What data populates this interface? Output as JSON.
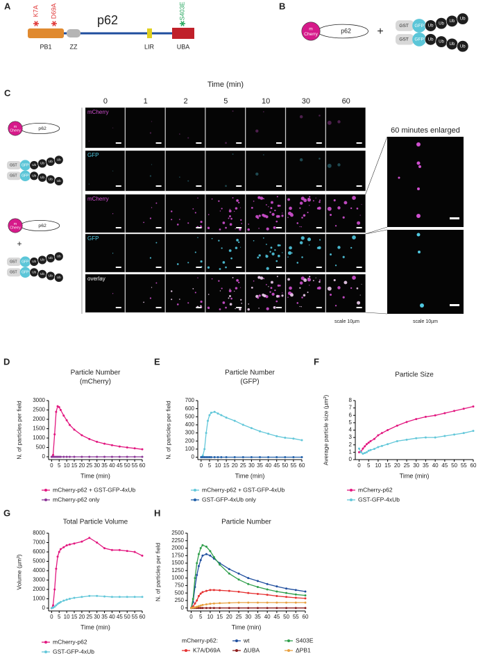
{
  "panel_a": {
    "label": "A",
    "protein": "p62",
    "mutations": [
      "K7A",
      "D69A",
      "S403E"
    ],
    "domains": [
      "PB1",
      "ZZ",
      "LIR",
      "UBA"
    ]
  },
  "panel_b": {
    "label": "B",
    "mcherry": [
      "m",
      "Cherry"
    ],
    "p62": "p62",
    "plus": "+",
    "gst": "GST",
    "gfp": "GFP",
    "ub": "Ub"
  },
  "panel_c": {
    "label": "C",
    "axis_title": "Time (min)",
    "times": [
      "0",
      "1",
      "2",
      "5",
      "10",
      "30",
      "60"
    ],
    "channels": [
      "mCherry",
      "GFP",
      "mCherry",
      "GFP",
      "overlay"
    ],
    "enlarged_title": "60 minutes enlarged",
    "scale": "scale 10µm"
  },
  "chart_data": [
    {
      "type": "line",
      "panel": "D",
      "title": "Particle Number",
      "subtitle": "(mCherry)",
      "xlabel": "Time (min)",
      "ylabel": "N. of particles per field",
      "x": [
        0,
        1,
        2,
        3,
        4,
        5,
        6,
        8,
        10,
        12,
        15,
        20,
        25,
        30,
        35,
        40,
        45,
        50,
        55,
        60
      ],
      "xlim": [
        -2,
        60
      ],
      "xticks": [
        0,
        5,
        10,
        15,
        20,
        25,
        30,
        35,
        40,
        45,
        50,
        55,
        60
      ],
      "ylim": [
        -150,
        3000
      ],
      "yticks": [
        0,
        500,
        1000,
        1500,
        2000,
        2500,
        3000
      ],
      "series": [
        {
          "name": "mCherry-p62 + GST-GFP-4xUb",
          "color": "#e2167f",
          "values": [
            0,
            100,
            1200,
            2400,
            2700,
            2650,
            2500,
            2200,
            1950,
            1700,
            1450,
            1150,
            950,
            800,
            700,
            620,
            550,
            500,
            450,
            400
          ]
        },
        {
          "name": "mCherry-p62 only",
          "color": "#8a3597",
          "values": [
            0,
            0,
            0,
            0,
            0,
            0,
            0,
            0,
            0,
            0,
            0,
            0,
            0,
            0,
            0,
            0,
            0,
            0,
            0,
            0
          ]
        }
      ]
    },
    {
      "type": "line",
      "panel": "E",
      "title": "Particle Number",
      "subtitle": "(GFP)",
      "xlabel": "Time (min)",
      "ylabel": "N. of particles per field",
      "x": [
        0,
        1,
        2,
        3,
        4,
        5,
        6,
        8,
        10,
        12,
        15,
        20,
        25,
        30,
        35,
        40,
        45,
        50,
        55,
        60
      ],
      "xlim": [
        -2,
        60
      ],
      "xticks": [
        0,
        5,
        10,
        15,
        20,
        25,
        30,
        35,
        40,
        45,
        50,
        55,
        60
      ],
      "ylim": [
        -30,
        700
      ],
      "yticks": [
        0,
        100,
        200,
        300,
        400,
        500,
        600,
        700
      ],
      "series": [
        {
          "name": "mCherry-p62 + GST-GFP-4xUb",
          "color": "#62c7d9",
          "values": [
            0,
            20,
            100,
            300,
            450,
            520,
            550,
            560,
            540,
            520,
            490,
            450,
            400,
            360,
            320,
            290,
            260,
            240,
            230,
            210
          ]
        },
        {
          "name": "GST-GFP-4xUb only",
          "color": "#1f5ea8",
          "values": [
            0,
            0,
            0,
            0,
            0,
            0,
            0,
            0,
            0,
            0,
            0,
            0,
            0,
            0,
            0,
            0,
            0,
            0,
            0,
            0
          ]
        }
      ]
    },
    {
      "type": "line",
      "panel": "F",
      "title": "Particle Size",
      "xlabel": "Time (min)",
      "ylabel": "Average particle size (µm²)",
      "x": [
        0,
        1,
        2,
        3,
        4,
        5,
        6,
        8,
        10,
        12,
        15,
        20,
        25,
        30,
        35,
        40,
        45,
        50,
        55,
        60
      ],
      "xlim": [
        -2,
        60
      ],
      "xticks": [
        0,
        5,
        10,
        15,
        20,
        25,
        30,
        35,
        40,
        45,
        50,
        55,
        60
      ],
      "ylim": [
        0,
        8
      ],
      "yticks": [
        0,
        1,
        2,
        3,
        4,
        5,
        6,
        7,
        8
      ],
      "series": [
        {
          "name": "mCherry-p62",
          "color": "#e2167f",
          "values": [
            1.0,
            1.1,
            1.5,
            1.8,
            2.1,
            2.3,
            2.5,
            2.8,
            3.3,
            3.6,
            4.0,
            4.6,
            5.1,
            5.5,
            5.8,
            6.0,
            6.3,
            6.6,
            6.9,
            7.2
          ]
        },
        {
          "name": "GST-GFP-4xUb",
          "color": "#62c7d9",
          "values": [
            1.5,
            1.0,
            0.8,
            0.9,
            1.0,
            1.2,
            1.3,
            1.45,
            1.7,
            1.85,
            2.1,
            2.5,
            2.7,
            2.9,
            3.0,
            3.0,
            3.2,
            3.4,
            3.6,
            3.9
          ]
        }
      ]
    },
    {
      "type": "line",
      "panel": "G",
      "title": "Total Particle Volume",
      "xlabel": "Time (min)",
      "ylabel": "Volume (µm³)",
      "x": [
        0,
        1,
        2,
        3,
        4,
        5,
        6,
        8,
        10,
        12,
        15,
        20,
        25,
        30,
        35,
        40,
        45,
        50,
        55,
        60
      ],
      "xlim": [
        -2,
        60
      ],
      "xticks": [
        0,
        5,
        10,
        15,
        20,
        25,
        30,
        35,
        40,
        45,
        50,
        55,
        60
      ],
      "ylim": [
        -300,
        8000
      ],
      "yticks": [
        0,
        1000,
        2000,
        3000,
        4000,
        5000,
        6000,
        7000,
        8000
      ],
      "series": [
        {
          "name": "mCherry-p62",
          "color": "#e2167f",
          "values": [
            0,
            300,
            2000,
            4200,
            5500,
            6000,
            6300,
            6500,
            6700,
            6800,
            6900,
            7100,
            7500,
            7000,
            6400,
            6200,
            6200,
            6100,
            6000,
            5600
          ]
        },
        {
          "name": "GST-GFP-4xUb",
          "color": "#62c7d9",
          "values": [
            0,
            50,
            150,
            300,
            450,
            550,
            650,
            800,
            900,
            1000,
            1100,
            1200,
            1300,
            1300,
            1250,
            1200,
            1200,
            1200,
            1200,
            1200
          ]
        }
      ]
    },
    {
      "type": "line",
      "panel": "H",
      "title": "Particle Number",
      "xlabel": "Time (min)",
      "ylabel": "N. of particles per field",
      "legend_title": "mCherry-p62:",
      "x": [
        0,
        1,
        2,
        3,
        4,
        5,
        6,
        8,
        10,
        12,
        15,
        20,
        25,
        30,
        35,
        40,
        45,
        50,
        55,
        60
      ],
      "xlim": [
        -2,
        60
      ],
      "xticks": [
        0,
        5,
        10,
        15,
        20,
        25,
        30,
        35,
        40,
        45,
        50,
        55,
        60
      ],
      "ylim": [
        -100,
        2500
      ],
      "yticks": [
        0,
        250,
        500,
        750,
        1000,
        1250,
        1500,
        1750,
        2000,
        2250,
        2500
      ],
      "series": [
        {
          "name": "wt",
          "color": "#1f4e9e",
          "values": [
            0,
            200,
            700,
            1100,
            1400,
            1600,
            1750,
            1800,
            1750,
            1650,
            1500,
            1300,
            1150,
            1000,
            900,
            800,
            720,
            650,
            600,
            550
          ]
        },
        {
          "name": "S403E",
          "color": "#2e9e4a",
          "values": [
            0,
            300,
            1000,
            1500,
            1800,
            2000,
            2100,
            2050,
            1900,
            1700,
            1450,
            1150,
            950,
            800,
            700,
            620,
            550,
            500,
            450,
            420
          ]
        },
        {
          "name": "K7A/D69A",
          "color": "#e53030",
          "values": [
            0,
            50,
            150,
            250,
            400,
            480,
            530,
            570,
            600,
            600,
            590,
            570,
            540,
            500,
            470,
            440,
            400,
            370,
            340,
            320
          ]
        },
        {
          "name": "ΔUBA",
          "color": "#8b1a1a",
          "values": [
            0,
            0,
            0,
            0,
            0,
            0,
            0,
            0,
            0,
            0,
            0,
            0,
            0,
            0,
            0,
            0,
            0,
            0,
            0,
            0
          ]
        },
        {
          "name": "ΔPB1",
          "color": "#e8a040",
          "values": [
            0,
            10,
            20,
            40,
            60,
            80,
            100,
            120,
            140,
            150,
            160,
            170,
            180,
            180,
            180,
            180,
            180,
            180,
            180,
            180
          ]
        }
      ]
    }
  ]
}
